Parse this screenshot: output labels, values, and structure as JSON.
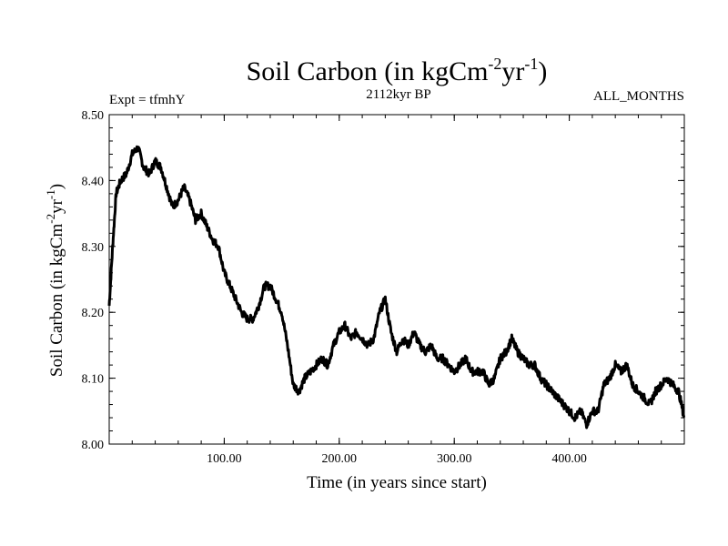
{
  "chart_data": {
    "type": "line",
    "title": {
      "base": "Soil Carbon (in kgCm",
      "sup1": "-2",
      "mid": "yr",
      "sup2": "-1",
      "end": ")"
    },
    "subtitle_left": "Expt = tfmhY",
    "subtitle_center": "2112kyr BP",
    "subtitle_right": "ALL_MONTHS",
    "xlabel": "Time (in years since start)",
    "ylabel": {
      "base": "Soil Carbon (in kgCm",
      "sup1": "-2",
      "mid": "yr",
      "sup2": "-1",
      "end": ")"
    },
    "xlim": [
      0,
      500
    ],
    "ylim": [
      8.0,
      8.5
    ],
    "xticks": [
      {
        "value": 100,
        "label": "100.00"
      },
      {
        "value": 200,
        "label": "200.00"
      },
      {
        "value": 300,
        "label": "300.00"
      },
      {
        "value": 400,
        "label": "400.00"
      }
    ],
    "yticks": [
      {
        "value": 8.0,
        "label": "8.00"
      },
      {
        "value": 8.1,
        "label": "8.10"
      },
      {
        "value": 8.2,
        "label": "8.20"
      },
      {
        "value": 8.3,
        "label": "8.30"
      },
      {
        "value": 8.4,
        "label": "8.40"
      },
      {
        "value": 8.5,
        "label": "8.50"
      }
    ],
    "series": [
      {
        "name": "Soil Carbon",
        "color": "#000000",
        "x": [
          0,
          3,
          6,
          10,
          15,
          20,
          25,
          30,
          35,
          40,
          45,
          50,
          55,
          60,
          65,
          70,
          75,
          80,
          85,
          90,
          95,
          100,
          105,
          110,
          115,
          120,
          125,
          130,
          135,
          140,
          145,
          150,
          155,
          160,
          165,
          170,
          175,
          180,
          185,
          190,
          195,
          200,
          205,
          210,
          215,
          220,
          225,
          230,
          235,
          240,
          245,
          250,
          255,
          260,
          265,
          270,
          275,
          280,
          285,
          290,
          295,
          300,
          305,
          310,
          315,
          320,
          325,
          330,
          335,
          340,
          345,
          350,
          355,
          360,
          365,
          370,
          375,
          380,
          385,
          390,
          395,
          400,
          405,
          410,
          415,
          420,
          425,
          430,
          435,
          440,
          445,
          450,
          455,
          460,
          465,
          470,
          475,
          480,
          485,
          490,
          495,
          500
        ],
        "y": [
          8.21,
          8.3,
          8.38,
          8.4,
          8.41,
          8.44,
          8.45,
          8.42,
          8.41,
          8.43,
          8.42,
          8.39,
          8.36,
          8.37,
          8.39,
          8.37,
          8.34,
          8.35,
          8.33,
          8.31,
          8.3,
          8.26,
          8.24,
          8.22,
          8.2,
          8.19,
          8.19,
          8.21,
          8.24,
          8.24,
          8.22,
          8.2,
          8.15,
          8.09,
          8.08,
          8.1,
          8.11,
          8.12,
          8.13,
          8.12,
          8.15,
          8.17,
          8.18,
          8.16,
          8.17,
          8.16,
          8.15,
          8.16,
          8.2,
          8.22,
          8.17,
          8.14,
          8.16,
          8.15,
          8.17,
          8.15,
          8.14,
          8.15,
          8.13,
          8.13,
          8.12,
          8.11,
          8.12,
          8.13,
          8.11,
          8.11,
          8.11,
          8.09,
          8.1,
          8.13,
          8.14,
          8.16,
          8.14,
          8.13,
          8.12,
          8.12,
          8.1,
          8.09,
          8.08,
          8.07,
          8.06,
          8.05,
          8.04,
          8.05,
          8.03,
          8.05,
          8.05,
          8.09,
          8.1,
          8.12,
          8.11,
          8.12,
          8.09,
          8.08,
          8.07,
          8.06,
          8.08,
          8.09,
          8.1,
          8.09,
          8.08,
          8.04
        ]
      }
    ]
  }
}
